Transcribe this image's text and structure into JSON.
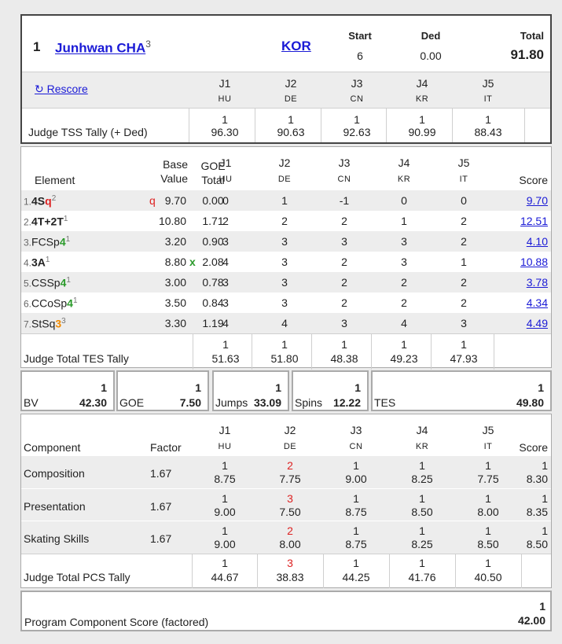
{
  "skater": {
    "rank": "1",
    "name": "Junhwan CHA",
    "name_sup": "3",
    "nation": "KOR",
    "start_label": "Start",
    "start": "6",
    "ded_label": "Ded",
    "ded": "0.00",
    "total_label": "Total",
    "total": "91.80"
  },
  "rescore": "↻ Rescore",
  "judges": [
    {
      "id": "J1",
      "nat": "HU",
      "tss_rank": "1",
      "tss": "96.30",
      "tes_rank": "1",
      "tes": "51.63",
      "pcs_rank": "1",
      "pcs": "44.67"
    },
    {
      "id": "J2",
      "nat": "DE",
      "tss_rank": "1",
      "tss": "90.63",
      "tes_rank": "1",
      "tes": "51.80",
      "pcs_rank": "3",
      "pcs": "38.83"
    },
    {
      "id": "J3",
      "nat": "CN",
      "tss_rank": "1",
      "tss": "92.63",
      "tes_rank": "1",
      "tes": "48.38",
      "pcs_rank": "1",
      "pcs": "44.25"
    },
    {
      "id": "J4",
      "nat": "KR",
      "tss_rank": "1",
      "tss": "90.99",
      "tes_rank": "1",
      "tes": "49.23",
      "pcs_rank": "1",
      "pcs": "41.76"
    },
    {
      "id": "J5",
      "nat": "IT",
      "tss_rank": "1",
      "tss": "88.43",
      "tes_rank": "1",
      "tes": "47.93",
      "pcs_rank": "1",
      "pcs": "40.50"
    }
  ],
  "tss_label": "Judge TSS Tally (+ Ded)",
  "elements_header": {
    "element": "Element",
    "base1": "Base",
    "base2": "Value",
    "goe1": "GOE",
    "goe2": "Total",
    "score": "Score"
  },
  "elements": [
    {
      "num": "1.",
      "a": "4S",
      "b": "q",
      "c": "",
      "sup": "2",
      "flag": "q",
      "bv": "9.70",
      "goe": "0.00",
      "j": [
        "0",
        "1",
        "-1",
        "0",
        "0"
      ],
      "score": "9.70"
    },
    {
      "num": "2.",
      "a": "4T+2T",
      "b": "",
      "c": "",
      "sup": "1",
      "flag": "",
      "bv": "10.80",
      "goe": "1.71",
      "j": [
        "2",
        "2",
        "2",
        "1",
        "2"
      ],
      "score": "12.51"
    },
    {
      "num": "3.",
      "a": "FCSp",
      "b": "4",
      "c": "",
      "sup": "1",
      "flag": "",
      "bv": "3.20",
      "goe": "0.90",
      "j": [
        "3",
        "3",
        "3",
        "3",
        "2"
      ],
      "score": "4.10"
    },
    {
      "num": "4.",
      "a": "3A",
      "b": "",
      "c": "",
      "sup": "1",
      "flag": "",
      "bv": "8.80",
      "bonus": "x",
      "goe": "2.08",
      "j": [
        "4",
        "3",
        "2",
        "3",
        "1"
      ],
      "score": "10.88"
    },
    {
      "num": "5.",
      "a": "CSSp",
      "b": "4",
      "c": "",
      "sup": "1",
      "flag": "",
      "bv": "3.00",
      "goe": "0.78",
      "j": [
        "3",
        "3",
        "2",
        "2",
        "2"
      ],
      "score": "3.78"
    },
    {
      "num": "6.",
      "a": "CCoSp",
      "b": "4",
      "c": "",
      "sup": "1",
      "flag": "",
      "bv": "3.50",
      "goe": "0.84",
      "j": [
        "3",
        "3",
        "2",
        "2",
        "2"
      ],
      "score": "4.34"
    },
    {
      "num": "7.",
      "a": "StSq",
      "b": "",
      "c": "3",
      "sup": "3",
      "flag": "",
      "bv": "3.30",
      "goe": "1.19",
      "j": [
        "4",
        "4",
        "3",
        "4",
        "3"
      ],
      "score": "4.49"
    }
  ],
  "tes_label": "Judge Total TES Tally",
  "summary": [
    {
      "label": "BV",
      "rank": "1",
      "value": "42.30"
    },
    {
      "label": "GOE",
      "rank": "1",
      "value": "7.50"
    },
    {
      "label": "Jumps",
      "rank": "1",
      "value": "33.09"
    },
    {
      "label": "Spins",
      "rank": "1",
      "value": "12.22"
    },
    {
      "label": "TES",
      "rank": "1",
      "value": "49.80"
    }
  ],
  "pcs_header": {
    "component": "Component",
    "factor": "Factor",
    "score": "Score"
  },
  "components": [
    {
      "name": "Composition",
      "factor": "1.67",
      "ranks": [
        "1",
        "2",
        "1",
        "1",
        "1"
      ],
      "vals": [
        "8.75",
        "7.75",
        "9.00",
        "8.25",
        "7.75"
      ],
      "score_rank": "1",
      "score": "8.30"
    },
    {
      "name": "Presentation",
      "factor": "1.67",
      "ranks": [
        "1",
        "3",
        "1",
        "1",
        "1"
      ],
      "vals": [
        "9.00",
        "7.50",
        "8.75",
        "8.50",
        "8.00"
      ],
      "score_rank": "1",
      "score": "8.35"
    },
    {
      "name": "Skating Skills",
      "factor": "1.67",
      "ranks": [
        "1",
        "2",
        "1",
        "1",
        "1"
      ],
      "vals": [
        "9.00",
        "8.00",
        "8.75",
        "8.25",
        "8.50"
      ],
      "score_rank": "1",
      "score": "8.50"
    }
  ],
  "pcs_label": "Judge Total PCS Tally",
  "final": {
    "label": "Program Component Score (factored)",
    "rank": "1",
    "value": "42.00"
  }
}
